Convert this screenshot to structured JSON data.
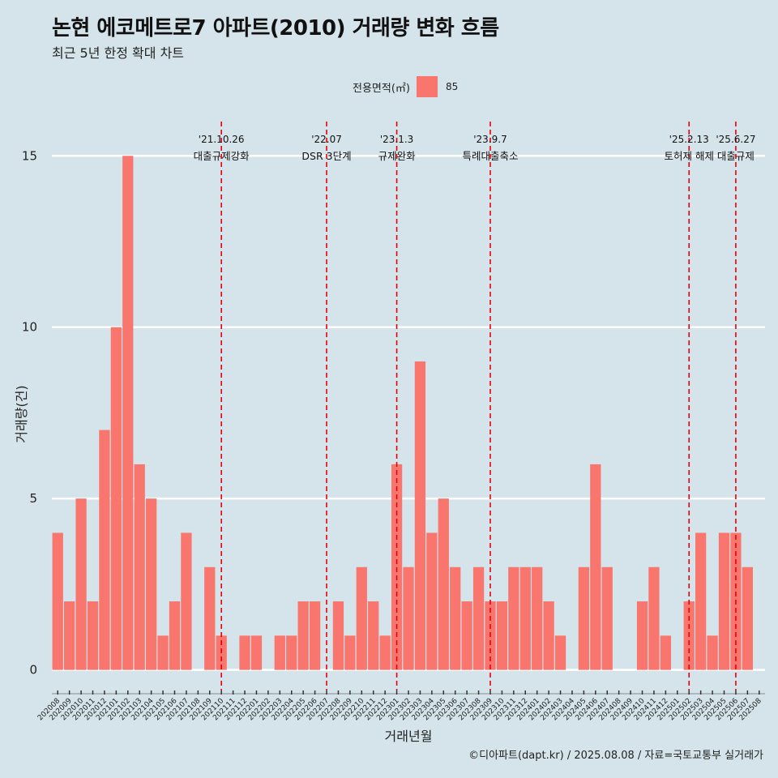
{
  "title": "논현 에코메트로7 아파트(2010) 거래량 변화 흐름",
  "subtitle": "최근 5년 한정 확대 차트",
  "legend": {
    "title": "전용면적(㎡)",
    "label": "85",
    "color": "#f8766d"
  },
  "caption": "©디아파트(dapt.kr) / 2025.08.08 / 자료=국토교통부 실거래가",
  "chart_data": {
    "type": "bar",
    "xlabel": "거래년월",
    "ylabel": "거래량(건)",
    "ylim": [
      -0.6,
      16
    ],
    "yticks": [
      0,
      5,
      10,
      15
    ],
    "grid": true,
    "legend_position": "top",
    "categories": [
      "202008",
      "202009",
      "202010",
      "202011",
      "202012",
      "202101",
      "202102",
      "202103",
      "202104",
      "202105",
      "202106",
      "202107",
      "202108",
      "202109",
      "202110",
      "202111",
      "202112",
      "202201",
      "202202",
      "202203",
      "202204",
      "202205",
      "202206",
      "202207",
      "202208",
      "202209",
      "202210",
      "202211",
      "202212",
      "202301",
      "202302",
      "202303",
      "202304",
      "202305",
      "202306",
      "202307",
      "202308",
      "202309",
      "202310",
      "202311",
      "202312",
      "202401",
      "202402",
      "202403",
      "202404",
      "202405",
      "202406",
      "202407",
      "202408",
      "202409",
      "202410",
      "202411",
      "202412",
      "202501",
      "202502",
      "202503",
      "202504",
      "202505",
      "202506",
      "202507",
      "202508"
    ],
    "series": [
      {
        "name": "85",
        "values": [
          4,
          2,
          5,
          2,
          7,
          10,
          15,
          6,
          5,
          1,
          2,
          4,
          0,
          3,
          1,
          0,
          1,
          1,
          0,
          1,
          1,
          2,
          2,
          0,
          2,
          1,
          3,
          2,
          1,
          6,
          3,
          9,
          4,
          5,
          3,
          2,
          3,
          2,
          2,
          3,
          3,
          3,
          2,
          1,
          0,
          3,
          6,
          3,
          0,
          0,
          2,
          3,
          1,
          0,
          2,
          4,
          1,
          4,
          4,
          3,
          0
        ]
      }
    ],
    "annotations": [
      {
        "date": "'21.10.26",
        "label": "대출규제강화",
        "x": "202110"
      },
      {
        "date": "'22.07",
        "label": "DSR 3단계",
        "x": "202207"
      },
      {
        "date": "'23.1.3",
        "label": "규제완화",
        "x": "202301"
      },
      {
        "date": "'23.9.7",
        "label": "특례대출축소",
        "x": "202309"
      },
      {
        "date": "'25.2.13",
        "label": "토허제 해제",
        "x": "202502"
      },
      {
        "date": "'25.6.27",
        "label": "대출규제",
        "x": "202506"
      }
    ]
  }
}
